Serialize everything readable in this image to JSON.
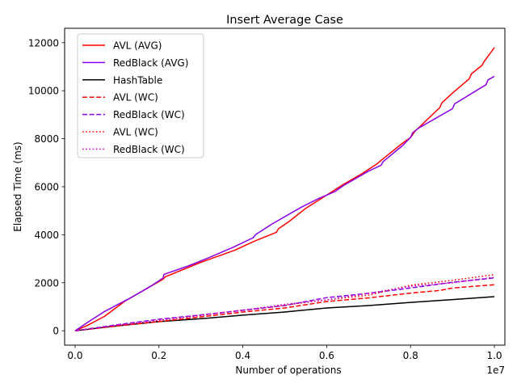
{
  "chart_data": {
    "type": "line",
    "title": "Insert Average Case",
    "xlabel": "Number of operations",
    "ylabel": "Elapsed Time (ms)",
    "x_offset_label": "1e7",
    "xlim": [
      -250000,
      10250000
    ],
    "ylim": [
      -600,
      12600
    ],
    "x_ticks": [
      0,
      2000000,
      4000000,
      6000000,
      8000000,
      10000000
    ],
    "x_tick_labels": [
      "0.0",
      "0.2",
      "0.4",
      "0.6",
      "0.8",
      "1.0"
    ],
    "y_ticks": [
      0,
      2000,
      4000,
      6000,
      8000,
      10000,
      12000
    ],
    "y_tick_labels": [
      "0",
      "2000",
      "4000",
      "6000",
      "8000",
      "10000",
      "12000"
    ],
    "legend_position": "upper-left",
    "grid": false,
    "series": [
      {
        "name": "AVL (AVG)",
        "color": "#ff0000",
        "style": "solid",
        "points": [
          [
            0,
            0
          ],
          [
            300000,
            230
          ],
          [
            700000,
            600
          ],
          [
            1200000,
            1250
          ],
          [
            1700000,
            1750
          ],
          [
            2100000,
            2150
          ],
          [
            2150000,
            2250
          ],
          [
            3000000,
            2850
          ],
          [
            3800000,
            3350
          ],
          [
            4300000,
            3750
          ],
          [
            4800000,
            4100
          ],
          [
            4850000,
            4250
          ],
          [
            5100000,
            4550
          ],
          [
            5500000,
            5100
          ],
          [
            6000000,
            5650
          ],
          [
            6400000,
            6100
          ],
          [
            6800000,
            6500
          ],
          [
            7200000,
            6950
          ],
          [
            7300000,
            7100
          ],
          [
            7800000,
            7800
          ],
          [
            8000000,
            8050
          ],
          [
            8100000,
            8300
          ],
          [
            8700000,
            9300
          ],
          [
            8750000,
            9500
          ],
          [
            9000000,
            9900
          ],
          [
            9400000,
            10500
          ],
          [
            9450000,
            10700
          ],
          [
            9700000,
            11050
          ],
          [
            9750000,
            11200
          ],
          [
            10000000,
            11800
          ]
        ]
      },
      {
        "name": "RedBlack (AVG)",
        "color": "#8a00e6",
        "style": "solid",
        "points": [
          [
            0,
            0
          ],
          [
            300000,
            350
          ],
          [
            700000,
            800
          ],
          [
            1300000,
            1350
          ],
          [
            1800000,
            1850
          ],
          [
            2100000,
            2200
          ],
          [
            2120000,
            2350
          ],
          [
            2700000,
            2700
          ],
          [
            3200000,
            3050
          ],
          [
            3800000,
            3500
          ],
          [
            4250000,
            3880
          ],
          [
            4300000,
            4000
          ],
          [
            4700000,
            4450
          ],
          [
            5400000,
            5150
          ],
          [
            5800000,
            5500
          ],
          [
            6200000,
            5800
          ],
          [
            6400000,
            6050
          ],
          [
            7000000,
            6650
          ],
          [
            7300000,
            6900
          ],
          [
            7350000,
            7050
          ],
          [
            7800000,
            7700
          ],
          [
            8000000,
            8050
          ],
          [
            8050000,
            8250
          ],
          [
            8200000,
            8450
          ],
          [
            9000000,
            9250
          ],
          [
            9050000,
            9450
          ],
          [
            9800000,
            10250
          ],
          [
            9850000,
            10450
          ],
          [
            10000000,
            10600
          ]
        ]
      },
      {
        "name": "HashTable",
        "color": "#000000",
        "style": "solid",
        "points": [
          [
            0,
            0
          ],
          [
            1000000,
            200
          ],
          [
            2000000,
            380
          ],
          [
            3000000,
            500
          ],
          [
            4000000,
            650
          ],
          [
            5000000,
            780
          ],
          [
            6000000,
            950
          ],
          [
            7000000,
            1050
          ],
          [
            8000000,
            1180
          ],
          [
            9000000,
            1300
          ],
          [
            10000000,
            1420
          ]
        ]
      },
      {
        "name": "AVL (WC)",
        "color": "#ff0000",
        "style": "dashed",
        "points": [
          [
            0,
            0
          ],
          [
            1000000,
            200
          ],
          [
            2000000,
            380
          ],
          [
            3000000,
            580
          ],
          [
            4000000,
            780
          ],
          [
            5000000,
            950
          ],
          [
            6000000,
            1220
          ],
          [
            7000000,
            1370
          ],
          [
            8000000,
            1570
          ],
          [
            8700000,
            1680
          ],
          [
            9000000,
            1780
          ],
          [
            10000000,
            1920
          ]
        ]
      },
      {
        "name": "RedBlack (WC)",
        "color": "#8a00e6",
        "style": "dashed",
        "points": [
          [
            0,
            0
          ],
          [
            1000000,
            250
          ],
          [
            2000000,
            480
          ],
          [
            3000000,
            660
          ],
          [
            4000000,
            850
          ],
          [
            5000000,
            1050
          ],
          [
            6000000,
            1380
          ],
          [
            7000000,
            1560
          ],
          [
            8000000,
            1780
          ],
          [
            9000000,
            2020
          ],
          [
            10000000,
            2200
          ]
        ]
      },
      {
        "name": "AVL (WC)",
        "color": "#ff0000",
        "style": "dotted",
        "points": [
          [
            0,
            0
          ],
          [
            1000000,
            230
          ],
          [
            2000000,
            430
          ],
          [
            3000000,
            640
          ],
          [
            4000000,
            860
          ],
          [
            5000000,
            1070
          ],
          [
            6000000,
            1290
          ],
          [
            7000000,
            1480
          ],
          [
            8000000,
            1900
          ],
          [
            9000000,
            2100
          ],
          [
            10000000,
            2340
          ]
        ]
      },
      {
        "name": "RedBlack (WC)",
        "color": "#cc00cc",
        "style": "dotted",
        "points": [
          [
            0,
            0
          ],
          [
            1000000,
            230
          ],
          [
            2000000,
            440
          ],
          [
            3000000,
            650
          ],
          [
            4000000,
            850
          ],
          [
            5000000,
            1100
          ],
          [
            6000000,
            1290
          ],
          [
            7000000,
            1560
          ],
          [
            8000000,
            1850
          ],
          [
            9000000,
            2000
          ],
          [
            10000000,
            2230
          ]
        ]
      }
    ]
  }
}
